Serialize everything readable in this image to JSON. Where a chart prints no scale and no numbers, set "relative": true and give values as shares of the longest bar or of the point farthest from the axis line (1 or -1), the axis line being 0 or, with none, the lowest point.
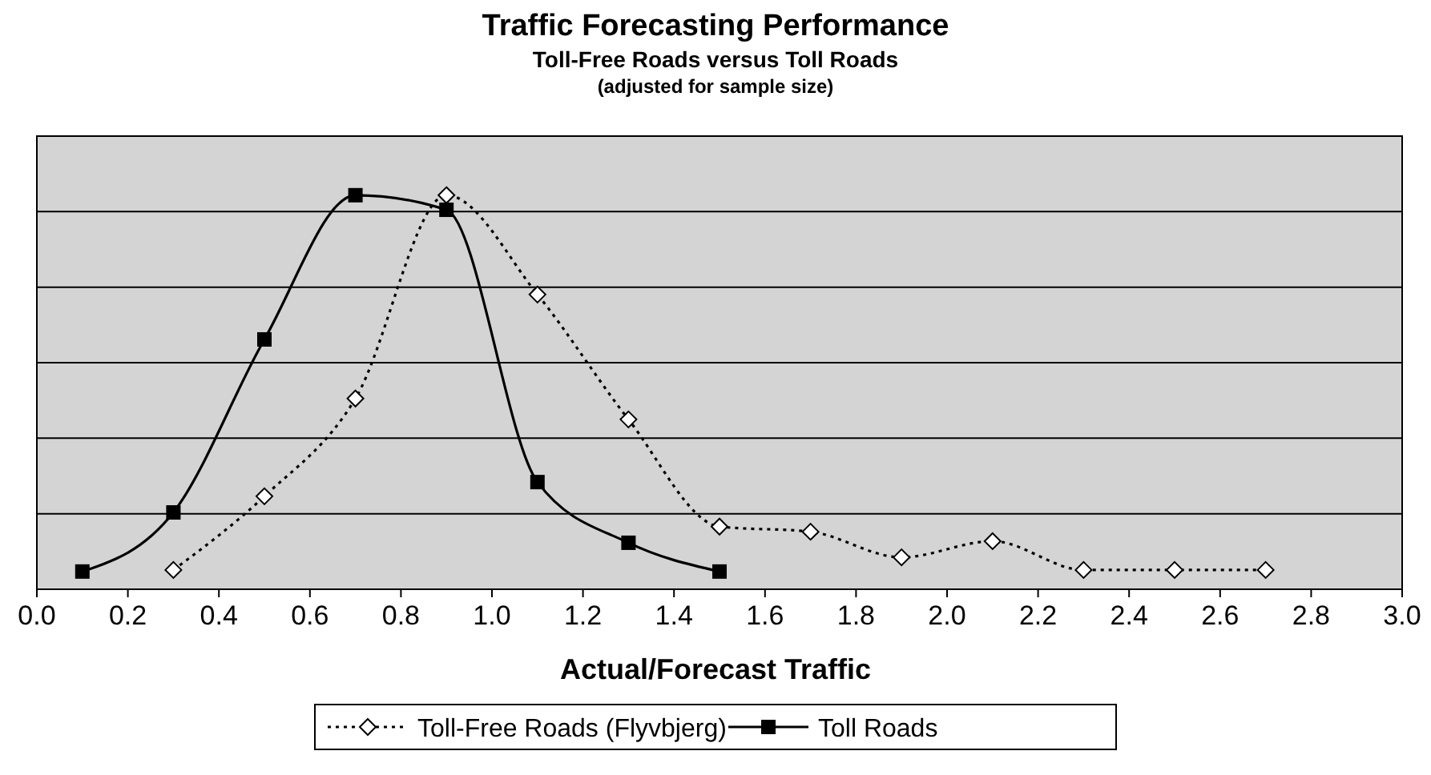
{
  "chart_data": {
    "type": "line",
    "title": "Traffic Forecasting Performance",
    "subtitle": "Toll-Free Roads versus Toll Roads",
    "annotations": [
      "(adjusted for sample size)"
    ],
    "xlabel": "Actual/Forecast Traffic",
    "relative": true,
    "grid": "y",
    "legend": "bottom",
    "xlim": [
      0,
      3
    ],
    "xticks": [
      {
        "value": 0,
        "label": "0.0"
      },
      0.2,
      0.4,
      0.6,
      0.8,
      {
        "value": 1,
        "label": "1.0"
      },
      1.2,
      1.4,
      1.6,
      1.8,
      {
        "value": 2,
        "label": "2.0"
      },
      2.2,
      2.4,
      2.6,
      2.8,
      {
        "value": 3,
        "label": "3.0"
      }
    ],
    "series": [
      {
        "name": "Toll-Free Roads (Flyvbjerg)",
        "color": "#000000",
        "marker": "diamond",
        "line_style": "dotted",
        "x": [
          0.3,
          0.5,
          0.7,
          0.9,
          1.1,
          1.3,
          1.5,
          1.7,
          1.9,
          2.1,
          2.3,
          2.5,
          2.7
        ],
        "values": [
          0.049,
          0.236,
          0.484,
          1,
          0.748,
          0.431,
          0.159,
          0.146,
          0.081,
          0.122,
          0.049,
          0.049,
          0.049
        ]
      },
      {
        "name": "Toll Roads",
        "color": "#000000",
        "marker": "square",
        "line_style": "solid",
        "x": [
          0.1,
          0.3,
          0.5,
          0.7,
          0.9,
          1.1,
          1.3,
          1.5
        ],
        "values": [
          0.045,
          0.195,
          0.634,
          1,
          0.963,
          0.272,
          0.118,
          0.045
        ]
      }
    ]
  }
}
